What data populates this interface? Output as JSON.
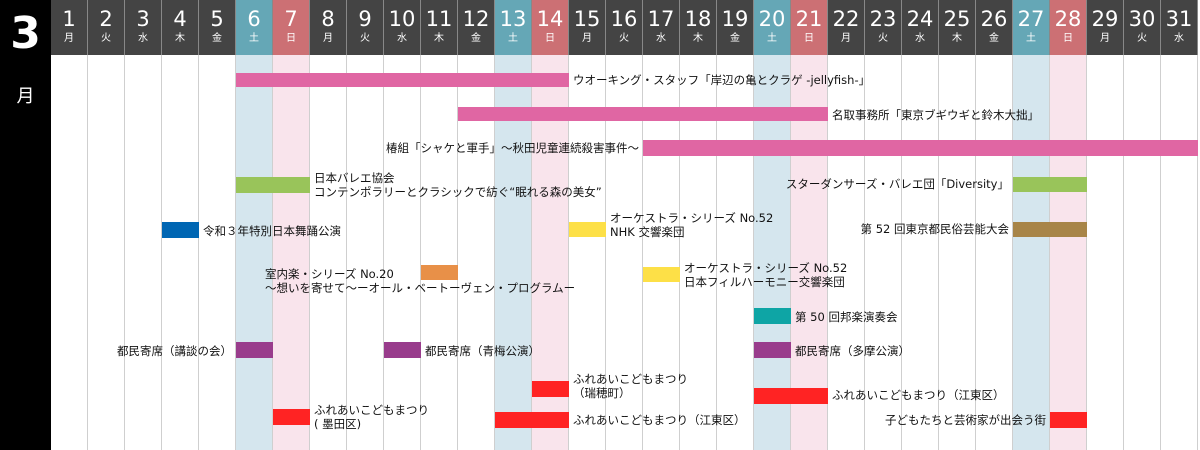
{
  "month": {
    "number": "3",
    "label": "月"
  },
  "days": [
    {
      "d": "1",
      "w": "月",
      "type": "wk"
    },
    {
      "d": "2",
      "w": "火",
      "type": "wk"
    },
    {
      "d": "3",
      "w": "水",
      "type": "wk"
    },
    {
      "d": "4",
      "w": "木",
      "type": "wk"
    },
    {
      "d": "5",
      "w": "金",
      "type": "wk"
    },
    {
      "d": "6",
      "w": "土",
      "type": "sat"
    },
    {
      "d": "7",
      "w": "日",
      "type": "sun"
    },
    {
      "d": "8",
      "w": "月",
      "type": "wk"
    },
    {
      "d": "9",
      "w": "火",
      "type": "wk"
    },
    {
      "d": "10",
      "w": "水",
      "type": "wk"
    },
    {
      "d": "11",
      "w": "木",
      "type": "wk"
    },
    {
      "d": "12",
      "w": "金",
      "type": "wk"
    },
    {
      "d": "13",
      "w": "土",
      "type": "sat"
    },
    {
      "d": "14",
      "w": "日",
      "type": "sun"
    },
    {
      "d": "15",
      "w": "月",
      "type": "wk"
    },
    {
      "d": "16",
      "w": "火",
      "type": "wk"
    },
    {
      "d": "17",
      "w": "水",
      "type": "wk"
    },
    {
      "d": "18",
      "w": "木",
      "type": "wk"
    },
    {
      "d": "19",
      "w": "金",
      "type": "wk"
    },
    {
      "d": "20",
      "w": "土",
      "type": "sat"
    },
    {
      "d": "21",
      "w": "日",
      "type": "sun"
    },
    {
      "d": "22",
      "w": "月",
      "type": "wk"
    },
    {
      "d": "23",
      "w": "火",
      "type": "wk"
    },
    {
      "d": "24",
      "w": "水",
      "type": "wk"
    },
    {
      "d": "25",
      "w": "木",
      "type": "wk"
    },
    {
      "d": "26",
      "w": "金",
      "type": "wk"
    },
    {
      "d": "27",
      "w": "土",
      "type": "sat"
    },
    {
      "d": "28",
      "w": "日",
      "type": "sun"
    },
    {
      "d": "29",
      "w": "月",
      "type": "wk"
    },
    {
      "d": "30",
      "w": "火",
      "type": "wk"
    },
    {
      "d": "31",
      "w": "水",
      "type": "wk"
    }
  ],
  "events": [
    {
      "name": "event-walking-staff",
      "bars": [
        {
          "start": 6,
          "end": 14
        }
      ],
      "color": "#e066a3",
      "lines": [
        "ウオーキング・スタッフ「岸辺の亀とクラゲ -jellyfish-」"
      ]
    },
    {
      "name": "event-natori",
      "bars": [
        {
          "start": 12,
          "end": 21
        }
      ],
      "color": "#e066a3",
      "lines": [
        "名取事務所「東京ブギウギと鈴木大拙」"
      ]
    },
    {
      "name": "event-tsubakigumi",
      "bars": [
        {
          "start": 17,
          "end": 31
        }
      ],
      "color": "#e066a3",
      "lines": [
        "椿組「シャケと軍手」〜秋田児童連続殺害事件〜"
      ]
    },
    {
      "name": "event-ballet-kyokai",
      "bars": [
        {
          "start": 6,
          "end": 7
        }
      ],
      "color": "#99c45a",
      "lines": [
        "日本バレエ協会",
        "コンテンポラリーとクラシックで紡ぐ“眠れる森の美女”"
      ]
    },
    {
      "name": "event-stardancers",
      "bars": [
        {
          "start": 27,
          "end": 28
        }
      ],
      "color": "#99c45a",
      "lines": [
        "スターダンサーズ・バレエ団「Diversity」"
      ]
    },
    {
      "name": "event-nihon-buyo",
      "bars": [
        {
          "start": 4,
          "end": 4
        }
      ],
      "color": "#0066b3",
      "lines": [
        "令和３年特別日本舞踊公演"
      ]
    },
    {
      "name": "event-orchestra-nhk",
      "bars": [
        {
          "start": 15,
          "end": 15
        }
      ],
      "color": "#fde047",
      "lines": [
        "オーケストラ・シリーズ No.52",
        "NHK 交響楽団"
      ]
    },
    {
      "name": "event-minzoku-geino",
      "bars": [
        {
          "start": 27,
          "end": 28
        }
      ],
      "color": "#a88548",
      "lines": [
        "第 52 回東京都民俗芸能大会"
      ]
    },
    {
      "name": "event-chamber-music",
      "bars": [
        {
          "start": 11,
          "end": 11
        }
      ],
      "color": "#e89048",
      "lines": [
        "室内楽・シリーズ No.20",
        "〜想いを寄せて〜ーオール・ベートーヴェン・プログラムー"
      ]
    },
    {
      "name": "event-orchestra-japan-phil",
      "bars": [
        {
          "start": 17,
          "end": 17
        }
      ],
      "color": "#fde047",
      "lines": [
        "オーケストラ・シリーズ No.52",
        "日本フィルハーモニー交響楽団"
      ]
    },
    {
      "name": "event-hogaku",
      "bars": [
        {
          "start": 20,
          "end": 20
        }
      ],
      "color": "#0ea5a5",
      "lines": [
        "第 50 回邦楽演奏会"
      ]
    },
    {
      "name": "event-yose-kodan",
      "bars": [
        {
          "start": 6,
          "end": 6
        }
      ],
      "color": "#993c8c",
      "lines": [
        "都民寄席（講談の会）"
      ]
    },
    {
      "name": "event-yose-ome",
      "bars": [
        {
          "start": 10,
          "end": 10
        }
      ],
      "color": "#993c8c",
      "lines": [
        "都民寄席（青梅公演）"
      ]
    },
    {
      "name": "event-yose-tama",
      "bars": [
        {
          "start": 20,
          "end": 20
        }
      ],
      "color": "#993c8c",
      "lines": [
        "都民寄席（多摩公演）"
      ]
    },
    {
      "name": "event-fureai-mizuho",
      "bars": [
        {
          "start": 14,
          "end": 14
        }
      ],
      "color": "#ff2323",
      "lines": [
        "ふれあいこどもまつり",
        "（瑞穂町）"
      ]
    },
    {
      "name": "event-fureai-koto-1",
      "bars": [
        {
          "start": 20,
          "end": 21
        }
      ],
      "color": "#ff2323",
      "lines": [
        "ふれあいこどもまつり（江東区）"
      ]
    },
    {
      "name": "event-fureai-sumida",
      "bars": [
        {
          "start": 7,
          "end": 7
        }
      ],
      "color": "#ff2323",
      "lines": [
        "ふれあいこどもまつり",
        "( 墨田区)"
      ]
    },
    {
      "name": "event-fureai-koto-2",
      "bars": [
        {
          "start": 13,
          "end": 14
        }
      ],
      "color": "#ff2323",
      "lines": [
        "ふれあいこどもまつり（江東区）"
      ]
    },
    {
      "name": "event-kodomo-artists",
      "bars": [
        {
          "start": 28,
          "end": 28
        }
      ],
      "color": "#ff2323",
      "lines": [
        "子どもたちと芸術家が出会う街"
      ]
    }
  ]
}
